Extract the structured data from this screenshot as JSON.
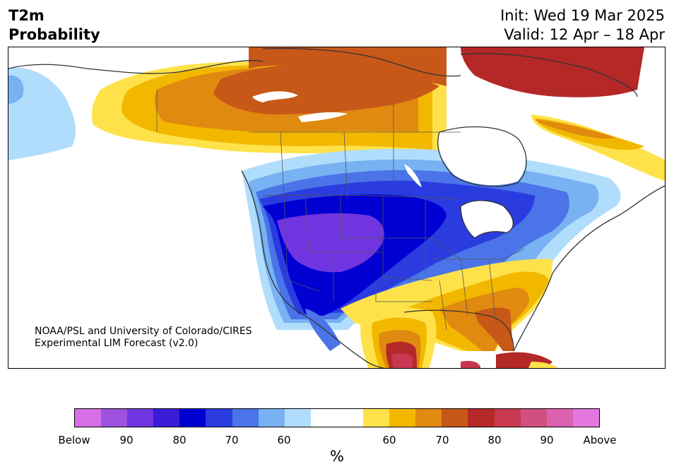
{
  "title": {
    "line1": "T2m",
    "line2": "Probability"
  },
  "header": {
    "init": "Init: Wed 19 Mar 2025",
    "valid": "Valid: 12 Apr – 18 Apr"
  },
  "credit": {
    "line1": "NOAA/PSL and University of Colorado/CIRES",
    "line2": "Experimental LIM Forecast (v2.0)"
  },
  "colorbar": {
    "colors": [
      "#d86ee8",
      "#9e52e0",
      "#7035e0",
      "#3c1cd6",
      "#0000d2",
      "#2a3ce0",
      "#4a74e8",
      "#78b2f2",
      "#b0ddfc",
      "#ffffff",
      "#ffffff",
      "#ffe24a",
      "#f2b800",
      "#e08a10",
      "#c85818",
      "#b42828",
      "#c83850",
      "#d05080",
      "#dc62b0",
      "#e478de"
    ],
    "ticks": [
      "Below",
      "90",
      "80",
      "70",
      "60",
      "60",
      "70",
      "80",
      "90",
      "Above"
    ],
    "unit": "%"
  },
  "map": {
    "region": "North America",
    "legend_meaning": "Probability (%) of below/above normal 2-meter temperature",
    "colors": {
      "below_90": "#7035e0",
      "below_80": "#0000d2",
      "below_75": "#2a3ce0",
      "below_70": "#4a74e8",
      "below_65": "#78b2f2",
      "below_60": "#b0ddfc",
      "near": "#ffffff",
      "above_60": "#ffe24a",
      "above_65": "#f2b800",
      "above_70": "#e08a10",
      "above_75": "#c85818",
      "above_80": "#b42828",
      "above_85": "#c83850"
    }
  }
}
